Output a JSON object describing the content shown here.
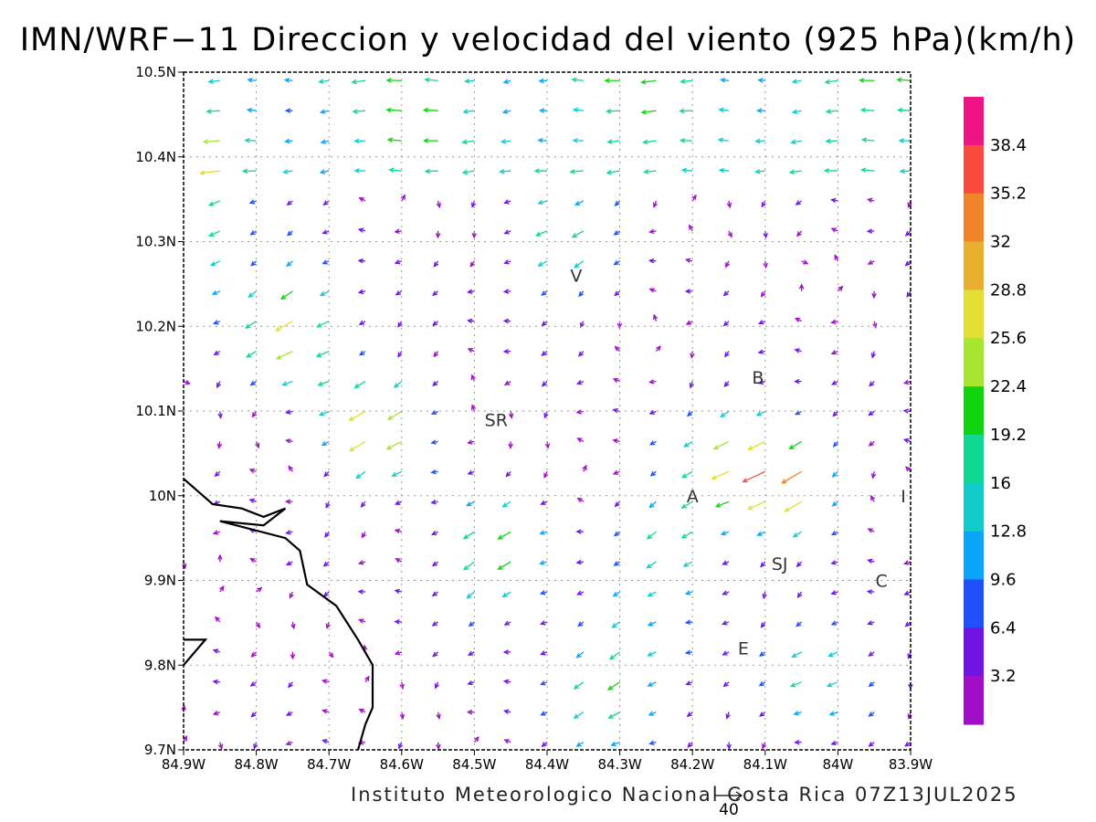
{
  "title": "IMN/WRF−11 Direccion y velocidad del viento (925 hPa)(km/h)",
  "footer": "Instituto Meteorologico Nacional Costa Rica 07Z13JUL2025",
  "reference_vector": {
    "label": "40",
    "value": 40
  },
  "axes": {
    "x_ticks": [
      "84.9W",
      "84.8W",
      "84.7W",
      "84.6W",
      "84.5W",
      "84.4W",
      "84.3W",
      "84.2W",
      "84.1W",
      "84W",
      "83.9W"
    ],
    "y_ticks": [
      "10.5N",
      "10.4N",
      "10.3N",
      "10.2N",
      "10.1N",
      "10N",
      "9.9N",
      "9.8N",
      "9.7N"
    ],
    "lon_range": [
      -84.9,
      -83.9
    ],
    "lat_range": [
      9.7,
      10.5
    ],
    "grid": true
  },
  "colorbar": {
    "labels": [
      "38.4",
      "35.2",
      "32",
      "28.8",
      "25.6",
      "22.4",
      "19.2",
      "16",
      "12.8",
      "9.6",
      "6.4",
      "3.2"
    ],
    "colors": [
      "#ef1483",
      "#f84a3e",
      "#f08428",
      "#e8ae2e",
      "#e4de34",
      "#a6e630",
      "#10d410",
      "#10d890",
      "#12cccc",
      "#0aa4f8",
      "#2050fa",
      "#7014e4",
      "#a00ec8"
    ]
  },
  "places": [
    {
      "name": "V",
      "lon": -84.36,
      "lat": 10.26
    },
    {
      "name": "B",
      "lon": -84.11,
      "lat": 10.14
    },
    {
      "name": "SR",
      "lon": -84.47,
      "lat": 10.09
    },
    {
      "name": "A",
      "lon": -84.2,
      "lat": 10.0
    },
    {
      "name": "I",
      "lon": -83.91,
      "lat": 10.0
    },
    {
      "name": "SJ",
      "lon": -84.08,
      "lat": 9.92
    },
    {
      "name": "C",
      "lon": -83.94,
      "lat": 9.9
    },
    {
      "name": "E",
      "lon": -84.13,
      "lat": 9.82
    }
  ],
  "coastline": [
    [
      [
        -84.9,
        10.02
      ],
      [
        -84.86,
        9.99
      ],
      [
        -84.82,
        9.985
      ],
      [
        -84.79,
        9.975
      ],
      [
        -84.76,
        9.985
      ],
      [
        -84.79,
        9.965
      ],
      [
        -84.85,
        9.97
      ],
      [
        -84.76,
        9.95
      ],
      [
        -84.74,
        9.935
      ],
      [
        -84.73,
        9.895
      ],
      [
        -84.69,
        9.87
      ],
      [
        -84.66,
        9.83
      ],
      [
        -84.64,
        9.8
      ],
      [
        -84.64,
        9.75
      ],
      [
        -84.65,
        9.73
      ],
      [
        -84.66,
        9.7
      ]
    ],
    [
      [
        -84.9,
        9.8
      ],
      [
        -84.87,
        9.83
      ],
      [
        -84.9,
        9.83
      ]
    ]
  ],
  "wind_field": {
    "units": "km/h",
    "lon_start": -84.9,
    "lon_step": 0.05,
    "lon_count": 21,
    "lat_start": 10.49,
    "lat_step": -0.0355,
    "lat_count": 23,
    "centers": [
      {
        "lon": -84.9,
        "lat": 10.32,
        "strength": 26,
        "sigma": 0.06
      },
      {
        "lon": -84.74,
        "lat": 10.2,
        "strength": 28,
        "sigma": 0.05
      },
      {
        "lon": -84.63,
        "lat": 10.08,
        "strength": 26,
        "sigma": 0.05
      },
      {
        "lon": -84.47,
        "lat": 9.93,
        "strength": 22,
        "sigma": 0.05
      },
      {
        "lon": -84.38,
        "lat": 10.3,
        "strength": 18,
        "sigma": 0.05
      },
      {
        "lon": -84.13,
        "lat": 10.05,
        "strength": 24,
        "sigma": 0.05
      },
      {
        "lon": -84.06,
        "lat": 10.02,
        "strength": 28,
        "sigma": 0.04
      },
      {
        "lon": -84.3,
        "lat": 9.78,
        "strength": 20,
        "sigma": 0.06
      },
      {
        "lon": -84.02,
        "lat": 9.8,
        "strength": 18,
        "sigma": 0.05
      },
      {
        "lon": -84.22,
        "lat": 9.95,
        "strength": 18,
        "sigma": 0.05
      }
    ]
  }
}
